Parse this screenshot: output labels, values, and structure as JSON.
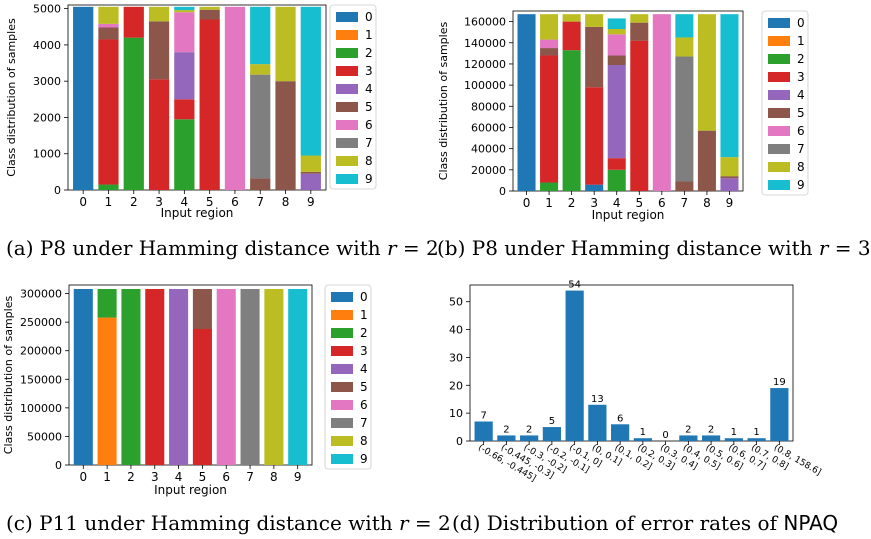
{
  "colors": {
    "0": "#1f77b4",
    "1": "#ff7f0e",
    "2": "#2ca02c",
    "3": "#d62728",
    "4": "#9467bd",
    "5": "#8c564b",
    "6": "#e377c2",
    "7": "#7f7f7f",
    "8": "#bcbd22",
    "9": "#17becf",
    "bar": "#1f77b4"
  },
  "captions": [
    {
      "id": "a",
      "prefix": "(a) P8 under Hamming distance with ",
      "var": "r",
      "suffix": " = 2"
    },
    {
      "id": "b",
      "prefix": "(b) P8 under Hamming distance with ",
      "var": "r",
      "suffix": " = 3"
    },
    {
      "id": "c",
      "prefix": "(c) P11 under Hamming distance with ",
      "var": "r",
      "suffix": " = 2"
    },
    {
      "id": "d",
      "prefix": "(d) Distribution of error rates of ",
      "var": "",
      "suffix": "NPAQ"
    }
  ],
  "chart_data": [
    {
      "id": "a",
      "type": "bar",
      "stacked": true,
      "xlabel": "Input region",
      "ylabel": "Class distribution of samples",
      "categories": [
        "0",
        "1",
        "2",
        "3",
        "4",
        "5",
        "6",
        "7",
        "8",
        "9"
      ],
      "ylim": [
        0,
        5100
      ],
      "yticks": [
        0,
        1000,
        2000,
        3000,
        4000,
        5000
      ],
      "legend": "right",
      "legend_entries": [
        "0",
        "1",
        "2",
        "3",
        "4",
        "5",
        "6",
        "7",
        "8",
        "9"
      ],
      "series": [
        {
          "name": "0",
          "values": [
            5050,
            0,
            0,
            0,
            0,
            0,
            0,
            0,
            0,
            0
          ]
        },
        {
          "name": "1",
          "values": [
            0,
            0,
            0,
            0,
            0,
            0,
            0,
            0,
            0,
            0
          ]
        },
        {
          "name": "2",
          "values": [
            0,
            150,
            4200,
            0,
            1950,
            0,
            0,
            0,
            0,
            0
          ]
        },
        {
          "name": "3",
          "values": [
            0,
            4000,
            850,
            3050,
            550,
            4700,
            0,
            0,
            0,
            0
          ]
        },
        {
          "name": "4",
          "values": [
            0,
            0,
            0,
            0,
            1300,
            0,
            0,
            0,
            0,
            450
          ]
        },
        {
          "name": "5",
          "values": [
            0,
            330,
            0,
            1600,
            0,
            270,
            0,
            320,
            3000,
            50
          ]
        },
        {
          "name": "6",
          "values": [
            0,
            100,
            0,
            0,
            1100,
            0,
            5050,
            0,
            0,
            0
          ]
        },
        {
          "name": "7",
          "values": [
            0,
            0,
            0,
            0,
            0,
            0,
            0,
            2860,
            0,
            0
          ]
        },
        {
          "name": "8",
          "values": [
            0,
            470,
            0,
            400,
            60,
            80,
            0,
            290,
            2050,
            450
          ]
        },
        {
          "name": "9",
          "values": [
            0,
            0,
            0,
            0,
            90,
            0,
            0,
            1580,
            0,
            4100
          ]
        }
      ]
    },
    {
      "id": "b",
      "type": "bar",
      "stacked": true,
      "xlabel": "Input region",
      "ylabel": "Class distribution of samples",
      "categories": [
        "0",
        "1",
        "2",
        "3",
        "4",
        "5",
        "6",
        "7",
        "8",
        "9"
      ],
      "ylim": [
        0,
        170000
      ],
      "yticks": [
        0,
        20000,
        40000,
        60000,
        80000,
        100000,
        120000,
        140000,
        160000
      ],
      "legend": "right",
      "legend_entries": [
        "0",
        "1",
        "2",
        "3",
        "4",
        "5",
        "6",
        "7",
        "8",
        "9"
      ],
      "series": [
        {
          "name": "0",
          "values": [
            167000,
            0,
            0,
            6000,
            0,
            0,
            0,
            0,
            0,
            0
          ]
        },
        {
          "name": "1",
          "values": [
            0,
            0,
            0,
            0,
            0,
            0,
            0,
            0,
            0,
            0
          ]
        },
        {
          "name": "2",
          "values": [
            0,
            8000,
            133000,
            0,
            20000,
            0,
            0,
            0,
            0,
            0
          ]
        },
        {
          "name": "3",
          "values": [
            0,
            120000,
            27000,
            92000,
            11000,
            142000,
            0,
            0,
            0,
            0
          ]
        },
        {
          "name": "4",
          "values": [
            0,
            0,
            0,
            0,
            88000,
            0,
            0,
            0,
            0,
            12000
          ]
        },
        {
          "name": "5",
          "values": [
            0,
            7000,
            0,
            57000,
            9000,
            17000,
            0,
            9000,
            57000,
            2000
          ]
        },
        {
          "name": "6",
          "values": [
            0,
            8000,
            0,
            0,
            20000,
            0,
            167000,
            0,
            0,
            0
          ]
        },
        {
          "name": "7",
          "values": [
            0,
            0,
            0,
            0,
            0,
            0,
            0,
            118000,
            0,
            0
          ]
        },
        {
          "name": "8",
          "values": [
            0,
            24000,
            7000,
            12000,
            5000,
            8000,
            0,
            18000,
            110000,
            18000
          ]
        },
        {
          "name": "9",
          "values": [
            0,
            0,
            0,
            0,
            10000,
            0,
            0,
            22000,
            0,
            135000
          ]
        }
      ]
    },
    {
      "id": "c",
      "type": "bar",
      "stacked": true,
      "xlabel": "Input region",
      "ylabel": "Class distribution of samples",
      "categories": [
        "0",
        "1",
        "2",
        "3",
        "4",
        "5",
        "6",
        "7",
        "8",
        "9"
      ],
      "ylim": [
        0,
        315000
      ],
      "yticks": [
        0,
        50000,
        100000,
        150000,
        200000,
        250000,
        300000
      ],
      "legend": "right",
      "legend_entries": [
        "0",
        "1",
        "2",
        "3",
        "4",
        "5",
        "6",
        "7",
        "8",
        "9"
      ],
      "series": [
        {
          "name": "0",
          "values": [
            308000,
            0,
            0,
            0,
            0,
            0,
            0,
            0,
            0,
            0
          ]
        },
        {
          "name": "1",
          "values": [
            0,
            258000,
            0,
            0,
            0,
            0,
            0,
            0,
            0,
            0
          ]
        },
        {
          "name": "2",
          "values": [
            0,
            50000,
            308000,
            0,
            0,
            0,
            0,
            0,
            0,
            0
          ]
        },
        {
          "name": "3",
          "values": [
            0,
            0,
            0,
            308000,
            0,
            238000,
            0,
            0,
            0,
            0
          ]
        },
        {
          "name": "4",
          "values": [
            0,
            0,
            0,
            0,
            308000,
            0,
            0,
            0,
            0,
            0
          ]
        },
        {
          "name": "5",
          "values": [
            0,
            0,
            0,
            0,
            0,
            70000,
            0,
            0,
            0,
            0
          ]
        },
        {
          "name": "6",
          "values": [
            0,
            0,
            0,
            0,
            0,
            0,
            308000,
            0,
            0,
            0
          ]
        },
        {
          "name": "7",
          "values": [
            0,
            0,
            0,
            0,
            0,
            0,
            0,
            308000,
            0,
            0
          ]
        },
        {
          "name": "8",
          "values": [
            0,
            0,
            0,
            0,
            0,
            0,
            0,
            0,
            308000,
            0
          ]
        },
        {
          "name": "9",
          "values": [
            0,
            0,
            0,
            0,
            0,
            0,
            0,
            0,
            0,
            308000
          ]
        }
      ]
    },
    {
      "id": "d",
      "type": "bar",
      "stacked": false,
      "xlabel": "",
      "ylabel": "",
      "categories": [
        "(-0.66, -0.445]",
        "(-0.445, -0.3]",
        "(-0.3, -0.2]",
        "(-0.2, -0.1]",
        "(-0.1, 0]",
        "(0, 0.1]",
        "(0.1, 0.2]",
        "(0.2, 0.3]",
        "(0.3, 0.4]",
        "(0.4, 0.5]",
        "(0.5, 0.6]",
        "(0.6, 0.7]",
        "(0.7, 0.8]",
        "(0.8, 158.6]"
      ],
      "values": [
        7,
        2,
        2,
        5,
        54,
        13,
        6,
        1,
        0,
        2,
        2,
        1,
        1,
        19
      ],
      "data_labels": [
        "7",
        "2",
        "2",
        "5",
        "54",
        "13",
        "6",
        "1",
        "0",
        "2",
        "2",
        "1",
        "1",
        "19"
      ],
      "ylim": [
        0,
        56
      ],
      "yticks": [
        0,
        10,
        20,
        30,
        40,
        50
      ],
      "legend": "none"
    }
  ]
}
